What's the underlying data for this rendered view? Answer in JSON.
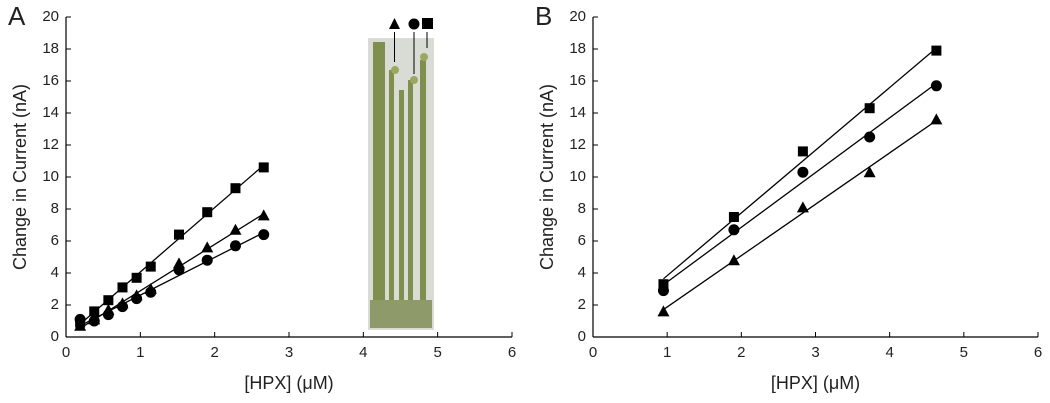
{
  "chart_data": [
    {
      "type": "scatter",
      "panel_label": "A",
      "xlabel": "[HPX] (μM)",
      "ylabel": "Change in Current (nA)",
      "xlim": [
        0,
        6
      ],
      "ylim": [
        0,
        20
      ],
      "xticks": [
        0,
        1,
        2,
        3,
        4,
        5,
        6
      ],
      "yticks": [
        0,
        2,
        4,
        6,
        8,
        10,
        12,
        14,
        16,
        18,
        20
      ],
      "x": [
        0.19,
        0.38,
        0.57,
        0.76,
        0.95,
        1.14,
        1.52,
        1.9,
        2.28,
        2.66
      ],
      "series": [
        {
          "marker": "square",
          "color": "#000000",
          "values": [
            0.9,
            1.6,
            2.3,
            3.1,
            3.7,
            4.4,
            6.4,
            7.8,
            9.3,
            10.6
          ]
        },
        {
          "marker": "triangle",
          "color": "#000000",
          "values": [
            0.7,
            1.1,
            1.7,
            2.1,
            2.6,
            3.0,
            4.6,
            5.6,
            6.7,
            7.6
          ]
        },
        {
          "marker": "circle",
          "color": "#000000",
          "values": [
            1.1,
            1.0,
            1.4,
            1.9,
            2.4,
            2.8,
            4.2,
            4.8,
            5.7,
            6.4
          ]
        }
      ]
    },
    {
      "type": "scatter",
      "panel_label": "B",
      "xlabel": "[HPX] (μM)",
      "ylabel": "Change in Current (nA)",
      "xlim": [
        0,
        6
      ],
      "ylim": [
        0,
        20
      ],
      "xticks": [
        0,
        1,
        2,
        3,
        4,
        5,
        6
      ],
      "yticks": [
        0,
        2,
        4,
        6,
        8,
        10,
        12,
        14,
        16,
        18,
        20
      ],
      "x": [
        0.95,
        1.9,
        2.83,
        3.73,
        4.63
      ],
      "series": [
        {
          "marker": "square",
          "color": "#000000",
          "values": [
            3.3,
            7.5,
            11.6,
            14.3,
            17.9
          ]
        },
        {
          "marker": "circle",
          "color": "#000000",
          "values": [
            2.9,
            6.7,
            10.3,
            12.5,
            15.7
          ]
        },
        {
          "marker": "triangle",
          "color": "#000000",
          "values": [
            1.6,
            4.8,
            8.1,
            10.3,
            13.6
          ]
        }
      ]
    }
  ]
}
